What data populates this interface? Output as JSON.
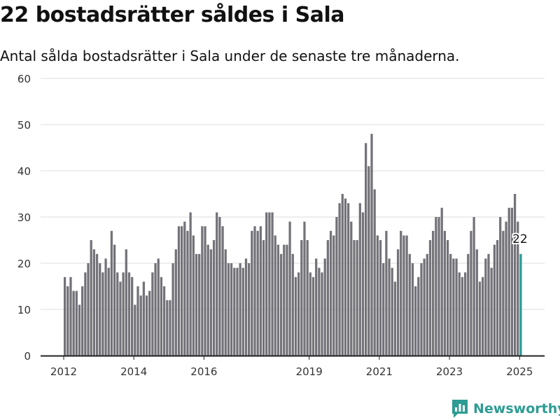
{
  "title": "22 bostadsrätter såldes i Sala",
  "subtitle": "Antal sålda bostadsrätter i Sala under de senaste tre månaderna.",
  "brand": "Newsworthy",
  "colors": {
    "bar": "#737278",
    "highlight": "#2a9a95",
    "grid": "#dddddd",
    "axis": "#222222",
    "brand": "#2d9c93"
  },
  "chart_data": {
    "type": "bar",
    "ylim": [
      0,
      60
    ],
    "yticks": [
      0,
      10,
      20,
      30,
      40,
      50,
      60
    ],
    "grid": true,
    "xlim": [
      2012.0,
      2025.3
    ],
    "xticks": [
      "2012",
      "2014",
      "2016",
      "2019",
      "2021",
      "2023",
      "2025"
    ],
    "highlight_label": "22",
    "series": [
      {
        "x_start": "2012-01",
        "interval": "month",
        "values": [
          17,
          15,
          17,
          14,
          14,
          11,
          15,
          18,
          20,
          25,
          23,
          22,
          20,
          18,
          21,
          19,
          27,
          24,
          18,
          16,
          18,
          23,
          18,
          17,
          11,
          15,
          13,
          16,
          13,
          14,
          18,
          20,
          21,
          17,
          15,
          12,
          12,
          20,
          23,
          28,
          28,
          29,
          27,
          31,
          26,
          22,
          22,
          28,
          28,
          24,
          23,
          25,
          31,
          30,
          28,
          23,
          20,
          20,
          19,
          19,
          20,
          19,
          21,
          20,
          27,
          28,
          27,
          28,
          25,
          31,
          31,
          31,
          26,
          24,
          22,
          24,
          24,
          29,
          22,
          17,
          18,
          25,
          29,
          25,
          18,
          17,
          21,
          19,
          18,
          21,
          25,
          27,
          26,
          30,
          33,
          35,
          34,
          33,
          29,
          25,
          25,
          33,
          31,
          46,
          41,
          48,
          36,
          26,
          25,
          20,
          27,
          21,
          19,
          16,
          23,
          27,
          26,
          26,
          22,
          20,
          15,
          17,
          20,
          21,
          22,
          25,
          27,
          30,
          30,
          32,
          27,
          25,
          22,
          21,
          21,
          18,
          17,
          18,
          22,
          27,
          30,
          23,
          16,
          17,
          21,
          22,
          19,
          24,
          25,
          30,
          27,
          29,
          32,
          32,
          35,
          29,
          22
        ]
      }
    ]
  }
}
